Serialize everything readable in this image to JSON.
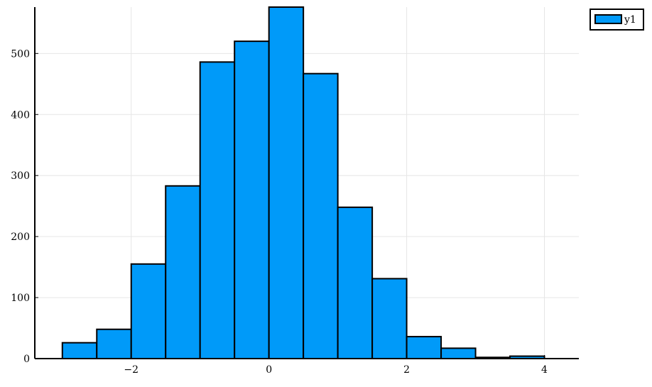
{
  "chart_data": {
    "type": "bar",
    "title": "",
    "xlabel": "",
    "ylabel": "",
    "x_ticks": [
      "−2",
      "0",
      "2",
      "4"
    ],
    "x_tick_values": [
      -2,
      0,
      2,
      4
    ],
    "y_ticks": [
      "0",
      "100",
      "200",
      "300",
      "400",
      "500"
    ],
    "y_tick_values": [
      0,
      100,
      200,
      300,
      400,
      500
    ],
    "xlim": [
      -3.4,
      4.5
    ],
    "ylim": [
      0,
      576
    ],
    "grid": true,
    "legend_position": "top-right",
    "series": [
      {
        "name": "y1",
        "color": "#009AF9",
        "bins": [
          {
            "x0": -3.0,
            "x1": -2.5,
            "value": 26
          },
          {
            "x0": -2.5,
            "x1": -2.0,
            "value": 48
          },
          {
            "x0": -2.0,
            "x1": -1.5,
            "value": 155
          },
          {
            "x0": -1.5,
            "x1": -1.0,
            "value": 283
          },
          {
            "x0": -1.0,
            "x1": -0.5,
            "value": 486
          },
          {
            "x0": -0.5,
            "x1": 0.0,
            "value": 520
          },
          {
            "x0": 0.0,
            "x1": 0.5,
            "value": 576
          },
          {
            "x0": 0.5,
            "x1": 1.0,
            "value": 467
          },
          {
            "x0": 1.0,
            "x1": 1.5,
            "value": 248
          },
          {
            "x0": 1.5,
            "x1": 2.0,
            "value": 131
          },
          {
            "x0": 2.0,
            "x1": 2.5,
            "value": 36
          },
          {
            "x0": 2.5,
            "x1": 3.0,
            "value": 17
          },
          {
            "x0": 3.0,
            "x1": 3.5,
            "value": 2
          },
          {
            "x0": 3.5,
            "x1": 4.0,
            "value": 4
          },
          {
            "x0": 4.0,
            "x1": 4.5,
            "value": 0
          }
        ]
      }
    ]
  }
}
